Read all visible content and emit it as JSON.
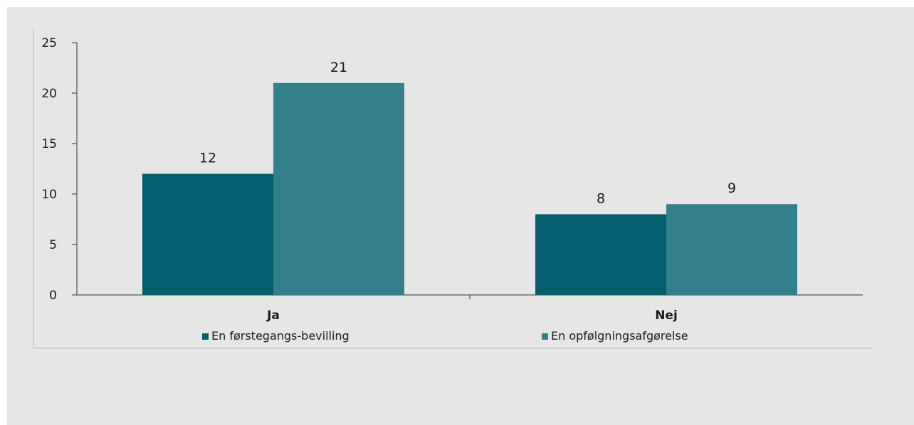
{
  "chart_data": {
    "type": "bar",
    "title": "",
    "xlabel": "",
    "ylabel": "",
    "categories": [
      "Ja",
      "Nej"
    ],
    "series": [
      {
        "name": "En førstegangs-bevilling",
        "values": [
          12,
          8
        ],
        "color": "#035e6e"
      },
      {
        "name": "En opfølgningsafgørelse",
        "values": [
          21,
          9
        ],
        "color": "#33808c"
      }
    ],
    "ylim": [
      0,
      25
    ],
    "yticks": [
      "0",
      "5",
      "10",
      "15",
      "20",
      "25"
    ],
    "grid": false,
    "legend_position": "bottom"
  }
}
